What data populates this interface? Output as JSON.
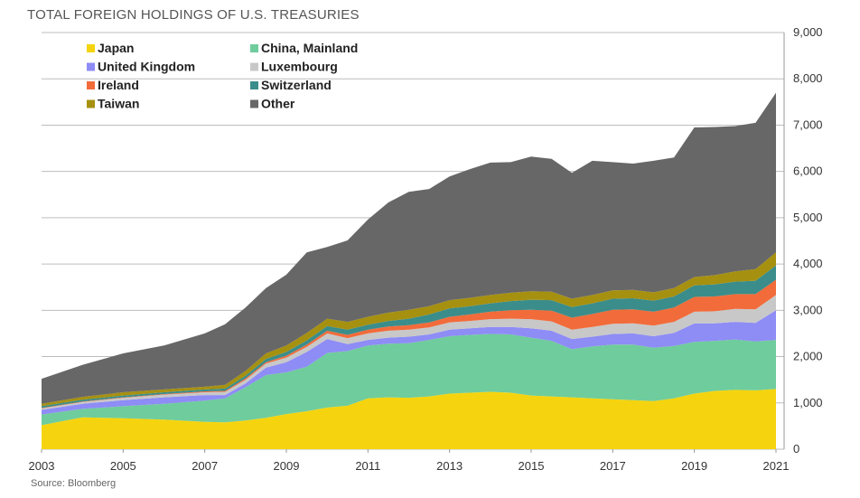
{
  "title": "TOTAL FOREIGN HOLDINGS OF U.S. TREASURIES",
  "source": "Source: Bloomberg",
  "chart_data": {
    "type": "area",
    "stacked": true,
    "title": "TOTAL FOREIGN HOLDINGS OF U.S. TREASURIES",
    "xlabel": "",
    "ylabel": "",
    "xlim": [
      2003,
      2021.2
    ],
    "ylim": [
      0,
      9000
    ],
    "x_ticks": [
      "2003",
      "2005",
      "2007",
      "2009",
      "2011",
      "2013",
      "2015",
      "2017",
      "2019",
      "2021"
    ],
    "y_ticks": [
      "0",
      "1,000",
      "2,000",
      "3,000",
      "4,000",
      "5,000",
      "6,000",
      "7,000",
      "8,000",
      "9,000"
    ],
    "grid": true,
    "legend_position": "top-left",
    "x": [
      2003,
      2004,
      2005,
      2006,
      2007,
      2007.5,
      2008,
      2008.5,
      2009,
      2009.5,
      2010,
      2010.5,
      2011,
      2011.5,
      2012,
      2012.5,
      2013,
      2013.5,
      2014,
      2014.5,
      2015,
      2015.5,
      2016,
      2016.5,
      2017,
      2017.5,
      2018,
      2018.5,
      2019,
      2019.5,
      2020,
      2020.5,
      2021
    ],
    "series": [
      {
        "name": "Japan",
        "color": "#f5d40f",
        "values": [
          520,
          690,
          670,
          640,
          590,
          580,
          620,
          680,
          760,
          820,
          900,
          940,
          1100,
          1120,
          1110,
          1140,
          1200,
          1220,
          1240,
          1220,
          1160,
          1140,
          1120,
          1100,
          1080,
          1060,
          1040,
          1100,
          1200,
          1260,
          1280,
          1270,
          1300
        ]
      },
      {
        "name": "China, Mainland",
        "color": "#6fcc9c",
        "values": [
          230,
          180,
          260,
          340,
          460,
          520,
          720,
          920,
          900,
          960,
          1180,
          1180,
          1140,
          1160,
          1180,
          1220,
          1240,
          1250,
          1250,
          1260,
          1250,
          1200,
          1040,
          1120,
          1180,
          1200,
          1150,
          1130,
          1120,
          1080,
          1090,
          1060,
          1060
        ]
      },
      {
        "name": "United Kingdom",
        "color": "#8e8cf5",
        "values": [
          100,
          110,
          130,
          140,
          120,
          70,
          80,
          160,
          220,
          320,
          300,
          150,
          120,
          130,
          140,
          120,
          140,
          140,
          150,
          160,
          200,
          220,
          220,
          210,
          230,
          240,
          250,
          280,
          400,
          380,
          380,
          400,
          640
        ]
      },
      {
        "name": "Luxembourg",
        "color": "#c8c8c8",
        "values": [
          30,
          40,
          50,
          60,
          60,
          70,
          80,
          90,
          100,
          110,
          120,
          130,
          140,
          150,
          150,
          150,
          160,
          160,
          170,
          180,
          200,
          200,
          200,
          210,
          220,
          220,
          230,
          240,
          250,
          260,
          280,
          290,
          330
        ]
      },
      {
        "name": "Ireland",
        "color": "#f26b3a",
        "values": [
          10,
          10,
          10,
          10,
          20,
          20,
          30,
          30,
          40,
          50,
          60,
          70,
          80,
          90,
          100,
          110,
          120,
          140,
          160,
          180,
          200,
          230,
          260,
          280,
          300,
          300,
          300,
          310,
          320,
          320,
          320,
          330,
          330
        ]
      },
      {
        "name": "Switzerland",
        "color": "#3a8d8a",
        "values": [
          40,
          40,
          40,
          40,
          40,
          50,
          60,
          70,
          80,
          90,
          100,
          110,
          110,
          120,
          140,
          170,
          180,
          180,
          180,
          200,
          220,
          230,
          230,
          230,
          240,
          240,
          240,
          240,
          250,
          260,
          270,
          290,
          310
        ]
      },
      {
        "name": "Taiwan",
        "color": "#a69010",
        "values": [
          50,
          60,
          70,
          60,
          60,
          80,
          100,
          120,
          140,
          160,
          160,
          170,
          170,
          180,
          190,
          180,
          180,
          180,
          180,
          180,
          180,
          180,
          180,
          180,
          180,
          180,
          180,
          180,
          180,
          200,
          220,
          250,
          280
        ]
      },
      {
        "name": "Other",
        "color": "#676767",
        "values": [
          540,
          690,
          840,
          950,
          1150,
          1310,
          1370,
          1410,
          1530,
          1740,
          1550,
          1760,
          2100,
          2380,
          2550,
          2530,
          2670,
          2780,
          2860,
          2820,
          2910,
          2870,
          2720,
          2900,
          2770,
          2730,
          2840,
          2820,
          3230,
          3200,
          3140,
          3160,
          3450
        ]
      }
    ]
  }
}
